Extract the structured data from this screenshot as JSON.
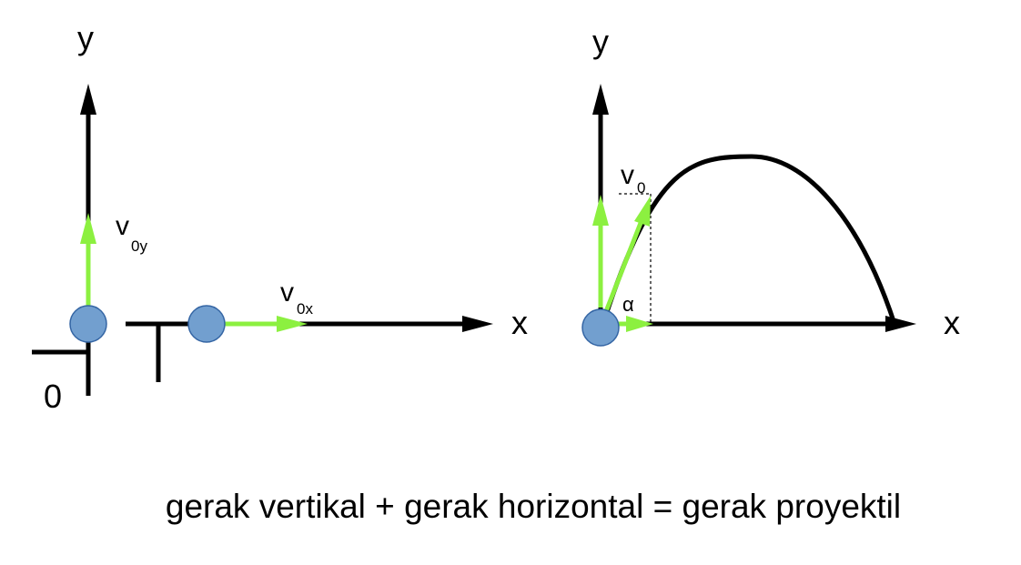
{
  "panels": {
    "vertical": {
      "axis_label": "y",
      "origin_label": "0",
      "velocity": {
        "symbol": "v",
        "subscript": "0y"
      }
    },
    "horizontal": {
      "axis_label": "x",
      "velocity": {
        "symbol": "v",
        "subscript": "0x"
      }
    },
    "projectile": {
      "y_axis_label": "y",
      "x_axis_label": "x",
      "velocity": {
        "symbol": "v",
        "subscript": "0"
      },
      "angle_label": "α"
    }
  },
  "caption": "gerak vertikal + gerak horizontal = gerak proyektil",
  "colors": {
    "axis": "#000000",
    "velocity_vector": "#8cf040",
    "ball_fill": "#729fcf",
    "ball_stroke": "#3465a4",
    "guide_dotted": "#000000"
  }
}
